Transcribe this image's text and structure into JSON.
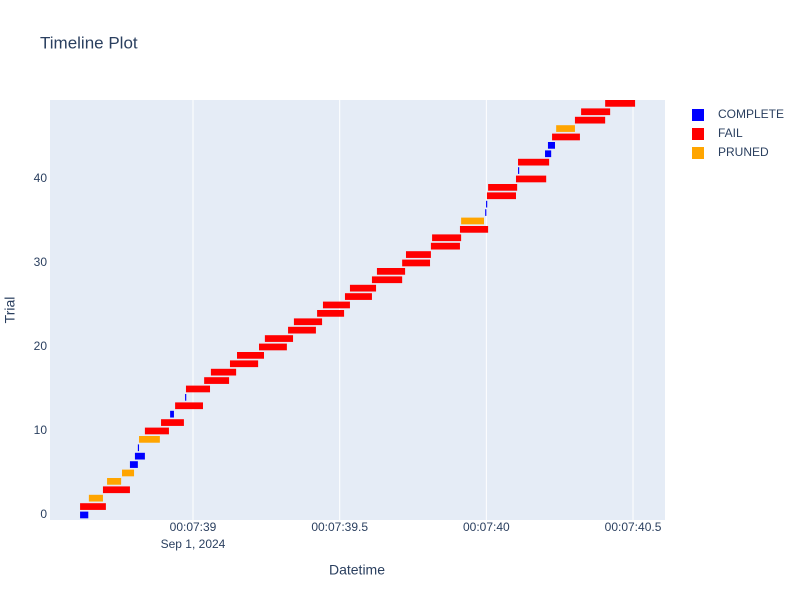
{
  "chart_data": {
    "type": "timeline",
    "title": "Timeline Plot",
    "x_label": "Datetime",
    "y_label": "Trial",
    "x_sublabel": "Sep 1, 2024",
    "xlim": [
      38.5125,
      40.609
    ],
    "ylim": [
      -0.6,
      49.4
    ],
    "xticks": [
      {
        "value": 39,
        "label": "00:07:39"
      },
      {
        "value": 39.5,
        "label": "00:07:39.5"
      },
      {
        "value": 40,
        "label": "00:07:40"
      },
      {
        "value": 40.5,
        "label": "00:07:40.5"
      }
    ],
    "yticks": [
      0,
      10,
      20,
      30,
      40
    ],
    "xgrid": true,
    "ygrid": false,
    "legend_position": "right",
    "series": [
      {
        "name": "COMPLETE",
        "color": "#0000ff",
        "trial": [
          0,
          6,
          7,
          8,
          12,
          14,
          36,
          37,
          41,
          43,
          44
        ],
        "start": [
          38.615,
          38.785,
          38.802,
          38.812,
          38.922,
          38.973,
          39.996,
          39.999,
          40.108,
          40.2,
          40.21
        ],
        "end": [
          38.643,
          38.812,
          38.836,
          38.816,
          38.935,
          38.977,
          40.0,
          40.003,
          40.112,
          40.221,
          40.234
        ]
      },
      {
        "name": "FAIL",
        "color": "#ff0000",
        "trial": [
          1,
          3,
          10,
          11,
          13,
          15,
          16,
          17,
          18,
          19,
          20,
          21,
          22,
          23,
          24,
          25,
          26,
          27,
          28,
          29,
          30,
          31,
          32,
          33,
          34,
          38,
          39,
          40,
          42,
          45,
          47,
          48,
          49
        ],
        "start": [
          38.615,
          38.693,
          38.836,
          38.891,
          38.939,
          38.976,
          39.038,
          39.061,
          39.126,
          39.15,
          39.225,
          39.245,
          39.324,
          39.344,
          39.423,
          39.443,
          39.518,
          39.535,
          39.61,
          39.627,
          39.713,
          39.726,
          39.811,
          39.815,
          39.91,
          40.002,
          40.006,
          40.101,
          40.108,
          40.224,
          40.302,
          40.323,
          40.405
        ],
        "end": [
          38.703,
          38.785,
          38.918,
          38.969,
          39.034,
          39.058,
          39.123,
          39.147,
          39.222,
          39.242,
          39.32,
          39.341,
          39.419,
          39.44,
          39.515,
          39.535,
          39.61,
          39.624,
          39.713,
          39.723,
          39.808,
          39.811,
          39.91,
          39.914,
          40.006,
          40.101,
          40.105,
          40.204,
          40.214,
          40.319,
          40.405,
          40.422,
          40.507
        ]
      },
      {
        "name": "PRUNED",
        "color": "#ffa500",
        "trial": [
          2,
          4,
          5,
          9,
          35,
          46
        ],
        "start": [
          38.645,
          38.707,
          38.758,
          38.816,
          39.914,
          40.238
        ],
        "end": [
          38.693,
          38.755,
          38.799,
          38.887,
          39.992,
          40.302
        ]
      }
    ]
  }
}
